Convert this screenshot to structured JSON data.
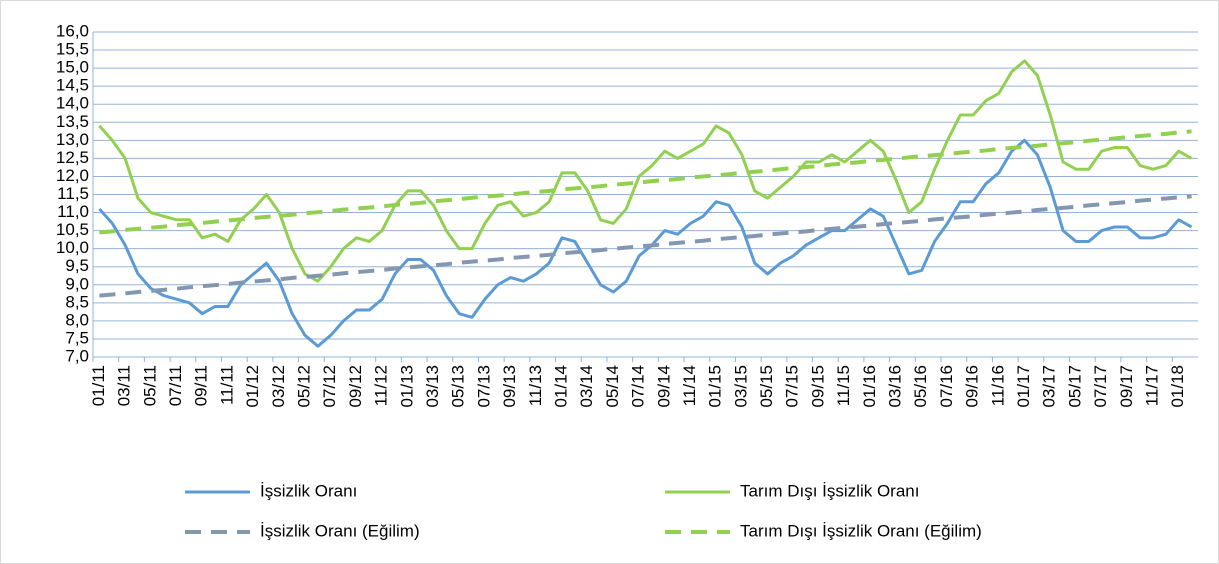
{
  "chart_data": {
    "type": "line",
    "categories": [
      "01/11",
      null,
      "03/11",
      null,
      "05/11",
      null,
      "07/11",
      null,
      "09/11",
      null,
      "11/11",
      null,
      "01/12",
      null,
      "03/12",
      null,
      "05/12",
      null,
      "07/12",
      null,
      "09/12",
      null,
      "11/12",
      null,
      "01/13",
      null,
      "03/13",
      null,
      "05/13",
      null,
      "07/13",
      null,
      "09/13",
      null,
      "11/13",
      null,
      "01/14",
      null,
      "03/14",
      null,
      "05/14",
      null,
      "07/14",
      null,
      "09/14",
      null,
      "11/14",
      null,
      "01/15",
      null,
      "03/15",
      null,
      "05/15",
      null,
      "07/15",
      null,
      "09/15",
      null,
      "11/15",
      null,
      "01/16",
      null,
      "03/16",
      null,
      "05/16",
      null,
      "07/16",
      null,
      "09/16",
      null,
      "11/16",
      null,
      "01/17",
      null,
      "03/17",
      null,
      "05/17",
      null,
      "07/17",
      null,
      "09/17",
      null,
      "11/17",
      null,
      "01/18",
      null
    ],
    "series": [
      {
        "name": "İşsizlik Oranı",
        "color": "#5b9bd5",
        "dashed": false,
        "values": [
          11.1,
          10.7,
          10.1,
          9.3,
          8.9,
          8.7,
          8.6,
          8.5,
          8.2,
          8.4,
          8.4,
          9.0,
          9.3,
          9.6,
          9.1,
          8.2,
          7.6,
          7.3,
          7.6,
          8.0,
          8.3,
          8.3,
          8.6,
          9.3,
          9.7,
          9.7,
          9.4,
          8.7,
          8.2,
          8.1,
          8.6,
          9.0,
          9.2,
          9.1,
          9.3,
          9.6,
          10.3,
          10.2,
          9.6,
          9.0,
          8.8,
          9.1,
          9.8,
          10.1,
          10.5,
          10.4,
          10.7,
          10.9,
          11.3,
          11.2,
          10.6,
          9.6,
          9.3,
          9.6,
          9.8,
          10.1,
          10.3,
          10.5,
          10.5,
          10.8,
          11.1,
          10.9,
          10.1,
          9.3,
          9.4,
          10.2,
          10.7,
          11.3,
          11.3,
          11.8,
          12.1,
          12.7,
          13.0,
          12.6,
          11.7,
          10.5,
          10.2,
          10.2,
          10.5,
          10.6,
          10.6,
          10.3,
          10.3,
          10.4,
          10.8,
          10.6
        ]
      },
      {
        "name": "Tarım Dışı İşsizlik Oranı",
        "color": "#92d050",
        "dashed": false,
        "values": [
          13.4,
          13.0,
          12.5,
          11.4,
          11.0,
          10.9,
          10.8,
          10.8,
          10.3,
          10.4,
          10.2,
          10.8,
          11.1,
          11.5,
          11.0,
          10.0,
          9.3,
          9.1,
          9.5,
          10.0,
          10.3,
          10.2,
          10.5,
          11.2,
          11.6,
          11.6,
          11.2,
          10.5,
          10.0,
          10.0,
          10.7,
          11.2,
          11.3,
          10.9,
          11.0,
          11.3,
          12.1,
          12.1,
          11.6,
          10.8,
          10.7,
          11.1,
          12.0,
          12.3,
          12.7,
          12.5,
          12.7,
          12.9,
          13.4,
          13.2,
          12.6,
          11.6,
          11.4,
          11.7,
          12.0,
          12.4,
          12.4,
          12.6,
          12.4,
          12.7,
          13.0,
          12.7,
          11.9,
          11.0,
          11.3,
          12.2,
          13.0,
          13.7,
          13.7,
          14.1,
          14.3,
          14.9,
          15.2,
          14.8,
          13.7,
          12.4,
          12.2,
          12.2,
          12.7,
          12.8,
          12.8,
          12.3,
          12.2,
          12.3,
          12.7,
          12.5
        ]
      },
      {
        "name": "İşsizlik Oranı (Eğilim)",
        "color": "#8497b0",
        "dashed": true,
        "values": [
          8.7,
          8.73,
          8.76,
          8.8,
          8.83,
          8.86,
          8.89,
          8.93,
          8.96,
          8.99,
          9.02,
          9.06,
          9.09,
          9.12,
          9.15,
          9.19,
          9.22,
          9.25,
          9.28,
          9.32,
          9.35,
          9.38,
          9.41,
          9.45,
          9.48,
          9.51,
          9.54,
          9.57,
          9.61,
          9.64,
          9.67,
          9.7,
          9.74,
          9.77,
          9.8,
          9.83,
          9.87,
          9.9,
          9.93,
          9.96,
          10.0,
          10.03,
          10.06,
          10.09,
          10.13,
          10.16,
          10.19,
          10.22,
          10.26,
          10.29,
          10.32,
          10.35,
          10.39,
          10.42,
          10.45,
          10.48,
          10.52,
          10.55,
          10.58,
          10.61,
          10.64,
          10.68,
          10.71,
          10.74,
          10.77,
          10.81,
          10.84,
          10.87,
          10.9,
          10.94,
          10.97,
          11.0,
          11.03,
          11.07,
          11.1,
          11.13,
          11.16,
          11.2,
          11.23,
          11.26,
          11.29,
          11.33,
          11.36,
          11.39,
          11.42,
          11.45
        ]
      },
      {
        "name": "Tarım Dışı İşsizlik Oranı (Eğilim)",
        "color": "#92d050",
        "dashed": true,
        "values": [
          10.45,
          10.48,
          10.52,
          10.55,
          10.58,
          10.61,
          10.65,
          10.68,
          10.71,
          10.75,
          10.78,
          10.81,
          10.85,
          10.88,
          10.91,
          10.94,
          10.98,
          11.01,
          11.04,
          11.08,
          11.11,
          11.14,
          11.17,
          11.21,
          11.24,
          11.27,
          11.31,
          11.34,
          11.37,
          11.41,
          11.44,
          11.47,
          11.5,
          11.54,
          11.57,
          11.6,
          11.64,
          11.67,
          11.7,
          11.73,
          11.77,
          11.8,
          11.83,
          11.87,
          11.9,
          11.93,
          11.97,
          12.0,
          12.03,
          12.06,
          12.1,
          12.13,
          12.16,
          12.2,
          12.23,
          12.26,
          12.29,
          12.33,
          12.36,
          12.39,
          12.43,
          12.46,
          12.49,
          12.53,
          12.56,
          12.59,
          12.62,
          12.66,
          12.69,
          12.72,
          12.76,
          12.79,
          12.82,
          12.85,
          12.89,
          12.92,
          12.95,
          12.99,
          13.02,
          13.05,
          13.09,
          13.12,
          13.15,
          13.18,
          13.22,
          13.25
        ]
      }
    ],
    "ylim": [
      7,
      16
    ],
    "yticks": [
      {
        "value": 7,
        "label": "7,0"
      },
      {
        "value": 7.5,
        "label": "7,5"
      },
      {
        "value": 8,
        "label": "8,0"
      },
      {
        "value": 8.5,
        "label": "8,5"
      },
      {
        "value": 9,
        "label": "9,0"
      },
      {
        "value": 9.5,
        "label": "9,5"
      },
      {
        "value": 10,
        "label": "10,0"
      },
      {
        "value": 10.5,
        "label": "10,5"
      },
      {
        "value": 11,
        "label": "11,0"
      },
      {
        "value": 11.5,
        "label": "11,5"
      },
      {
        "value": 12,
        "label": "12,0"
      },
      {
        "value": 12.5,
        "label": "12,5"
      },
      {
        "value": 13,
        "label": "13,0"
      },
      {
        "value": 13.5,
        "label": "13,5"
      },
      {
        "value": 14,
        "label": "14,0"
      },
      {
        "value": 14.5,
        "label": "14,5"
      },
      {
        "value": 15,
        "label": "15,0"
      },
      {
        "value": 15.5,
        "label": "15,5"
      },
      {
        "value": 16,
        "label": "16,0"
      }
    ],
    "grid": true,
    "legend": "bottom"
  }
}
